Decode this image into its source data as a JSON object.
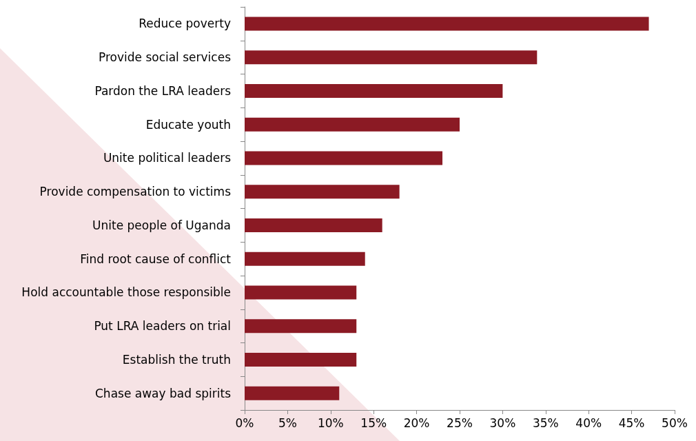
{
  "chart_data": {
    "type": "bar",
    "orientation": "horizontal",
    "categories": [
      "Reduce poverty",
      "Provide social services",
      "Pardon the LRA leaders",
      "Educate youth",
      "Unite political leaders",
      "Provide compensation to victims",
      "Unite people of Uganda",
      "Find root cause of conflict",
      "Hold accountable those responsible",
      "Put LRA leaders on trial",
      "Establish the truth",
      "Chase away bad spirits"
    ],
    "values": [
      47,
      34,
      30,
      25,
      23,
      18,
      16,
      14,
      13,
      13,
      13,
      11
    ],
    "color": "#8b1a24",
    "xlim": [
      0,
      50
    ],
    "xticks": [
      {
        "value": 0,
        "label": "0%"
      },
      {
        "value": 5,
        "label": "5%"
      },
      {
        "value": 10,
        "label": "10%"
      },
      {
        "value": 15,
        "label": "15%"
      },
      {
        "value": 20,
        "label": "20%"
      },
      {
        "value": 25,
        "label": "25%"
      },
      {
        "value": 30,
        "label": "30%"
      },
      {
        "value": 35,
        "label": "35%"
      },
      {
        "value": 40,
        "label": "40%"
      },
      {
        "value": 45,
        "label": "45%"
      },
      {
        "value": 50,
        "label": "50%"
      }
    ],
    "grid": false
  }
}
